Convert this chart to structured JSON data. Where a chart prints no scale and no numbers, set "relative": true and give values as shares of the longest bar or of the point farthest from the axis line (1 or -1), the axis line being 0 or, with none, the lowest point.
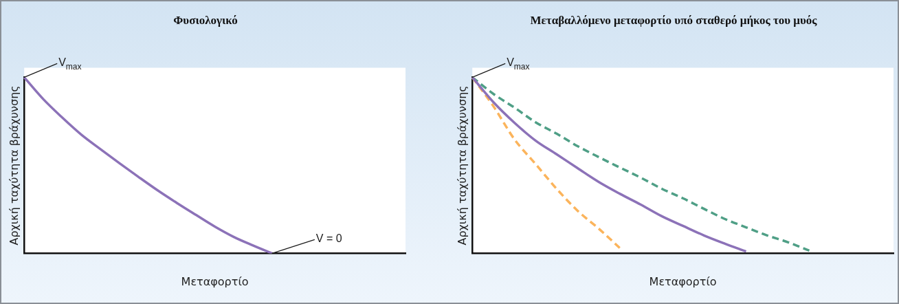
{
  "chart_data": [
    {
      "type": "line",
      "title": "Φυσιολογικό",
      "xlabel": "Μεταφορτίο",
      "ylabel": "Αρχική ταχύτητα βράχυνσης",
      "relative": true,
      "categories": [
        null,
        null,
        null,
        null,
        null,
        null,
        null,
        null,
        null,
        null,
        null,
        null,
        null,
        null,
        null,
        null,
        null,
        null,
        null,
        null,
        null
      ],
      "series": [
        {
          "color": "#8c72b8",
          "values": [
            1.0,
            0.876,
            0.771,
            0.674,
            0.592,
            0.512,
            0.434,
            0.358,
            0.287,
            0.219,
            0.152,
            0.093,
            0.045,
            0,
            null,
            null,
            null,
            null,
            null,
            null,
            null
          ]
        }
      ],
      "annotations": [
        "V$_{max}$",
        "V = 0"
      ]
    },
    {
      "type": "line",
      "title": "Μεταβαλλόμενο μεταφορτίο υπό σταθερό μήκος του μυός",
      "xlabel": "Μεταφορτίο",
      "ylabel": "Αρχική ταχύτητα βράχυνσης",
      "relative": true,
      "categories": [
        null,
        null,
        null,
        null,
        null,
        null,
        null,
        null,
        null,
        null,
        null,
        null,
        null,
        null,
        null,
        null,
        null,
        null,
        null,
        null,
        null
      ],
      "series": [
        {
          "color": "#8c72b8",
          "values": [
            1.0,
            0.859,
            0.742,
            0.641,
            0.563,
            0.484,
            0.406,
            0.339,
            0.277,
            0.211,
            0.156,
            0.102,
            0.055,
            0.011,
            null,
            null,
            null,
            null,
            null,
            null,
            null
          ]
        },
        {
          "color": "#fbb45c",
          "line_style": "dashed",
          "values": [
            1.0,
            0.836,
            0.648,
            0.508,
            0.367,
            0.242,
            0.141,
            0.031,
            null,
            null,
            null,
            null,
            null,
            null,
            null,
            null,
            null,
            null,
            null,
            null,
            null
          ]
        },
        {
          "color": "#4f9f86",
          "line_style": "dashed",
          "values": [
            1.0,
            0.906,
            0.828,
            0.745,
            0.68,
            0.609,
            0.547,
            0.488,
            0.43,
            0.367,
            0.313,
            0.253,
            0.195,
            0.148,
            0.102,
            0.063,
            0.016,
            null,
            null,
            null,
            null
          ]
        }
      ],
      "annotations": [
        "V$_{max}$"
      ]
    }
  ]
}
